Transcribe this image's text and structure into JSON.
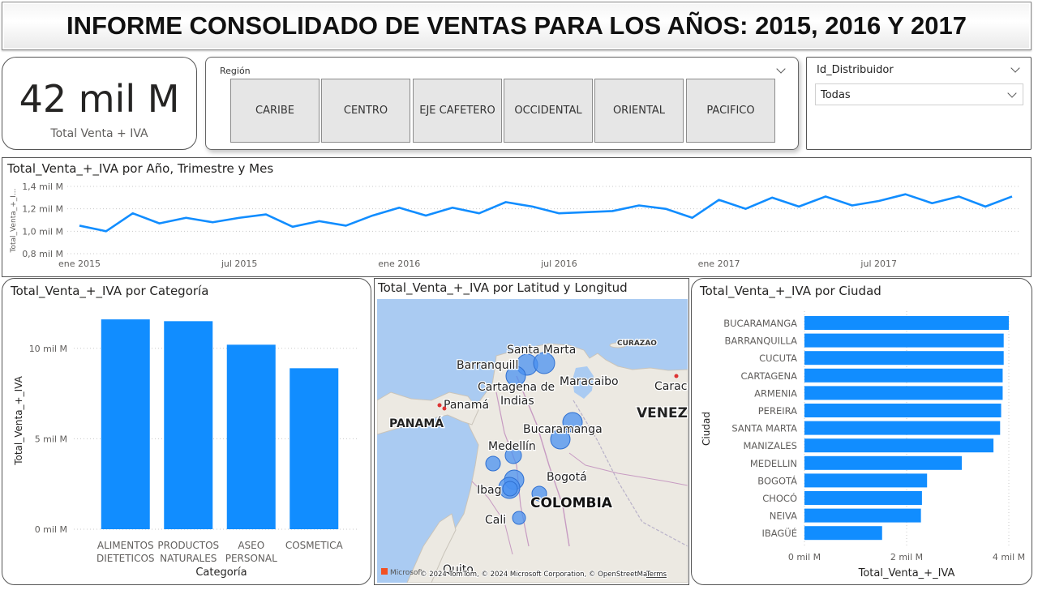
{
  "header": {
    "title": "INFORME CONSOLIDADO DE VENTAS PARA LOS AÑOS: 2015, 2016 Y 2017"
  },
  "kpi": {
    "value": "42 mil M",
    "label": "Total  Venta  +  IVA"
  },
  "region_slicer": {
    "title": "Región",
    "options": [
      "CARIBE",
      "CENTRO",
      "EJE CAFETERO",
      "OCCIDENTAL",
      "ORIENTAL",
      "PACIFICO"
    ]
  },
  "distributor_slicer": {
    "title": "Id_Distribuidor",
    "selected": "Todas"
  },
  "colors": {
    "accent": "#118DFF",
    "map_bubble": "#4A90F0",
    "grid": "#c8c8c8"
  },
  "chart_data": [
    {
      "type": "line",
      "title": "Total_Venta_+_IVA por Año, Trimestre y Mes",
      "ylabel": "Total_Venta_+_I...",
      "xlabel": "",
      "x_ticks": [
        "ene 2015",
        "jul 2015",
        "ene 2016",
        "jul 2016",
        "ene 2017",
        "jul 2017"
      ],
      "y_ticks": [
        "0,8 mil M",
        "1,0 mil M",
        "1,2 mil M",
        "1,4 mil M"
      ],
      "ylim": [
        0.8,
        1.4
      ],
      "y_unit": "mil M",
      "grid": true,
      "x": [
        "2015-01",
        "2015-02",
        "2015-03",
        "2015-04",
        "2015-05",
        "2015-06",
        "2015-07",
        "2015-08",
        "2015-09",
        "2015-10",
        "2015-11",
        "2015-12",
        "2016-01",
        "2016-02",
        "2016-03",
        "2016-04",
        "2016-05",
        "2016-06",
        "2016-07",
        "2016-08",
        "2016-09",
        "2016-10",
        "2016-11",
        "2016-12",
        "2017-01",
        "2017-02",
        "2017-03",
        "2017-04",
        "2017-05",
        "2017-06",
        "2017-07",
        "2017-08",
        "2017-09",
        "2017-10",
        "2017-11",
        "2017-12"
      ],
      "values": [
        1.05,
        1.0,
        1.16,
        1.07,
        1.12,
        1.08,
        1.12,
        1.15,
        1.04,
        1.09,
        1.05,
        1.14,
        1.21,
        1.14,
        1.21,
        1.16,
        1.26,
        1.22,
        1.16,
        1.17,
        1.18,
        1.23,
        1.2,
        1.12,
        1.28,
        1.2,
        1.3,
        1.22,
        1.31,
        1.23,
        1.27,
        1.33,
        1.25,
        1.31,
        1.22,
        1.31
      ]
    },
    {
      "type": "bar",
      "title": "Total_Venta_+_IVA por Categoría",
      "xlabel": "Categoría",
      "ylabel": "Total_Venta_+_IVA",
      "categories": [
        [
          "ALIMENTOS",
          "DIETETICOS"
        ],
        [
          "PRODUCTOS",
          "NATURALES"
        ],
        [
          "ASEO",
          "PERSONAL"
        ],
        [
          "COSMETICA"
        ]
      ],
      "values": [
        11.6,
        11.5,
        10.2,
        8.9
      ],
      "y_unit": "mil M",
      "y_ticks": [
        "0 mil M",
        "5 mil M",
        "10 mil M"
      ],
      "ylim": [
        0,
        12.5
      ],
      "grid": true
    },
    {
      "type": "bar",
      "orientation": "horizontal",
      "title": "Total_Venta_+_IVA por Ciudad",
      "xlabel": "Total_Venta_+_IVA",
      "ylabel": "Ciudad",
      "categories": [
        "BUCARAMANGA",
        "BARRANQUILLA",
        "CUCUTA",
        "CARTAGENA",
        "ARMENIA",
        "PEREIRA",
        "SANTA MARTA",
        "MANIZALES",
        "MEDELLIN",
        "BOGOTÁ",
        "CHOCÓ",
        "NEIVA",
        "IBAGÜÉ"
      ],
      "values": [
        4.0,
        3.9,
        3.9,
        3.88,
        3.88,
        3.85,
        3.83,
        3.7,
        3.08,
        2.4,
        2.3,
        2.28,
        1.52
      ],
      "y_unit": "mil M",
      "x_ticks": [
        "0 mil M",
        "2 mil M",
        "4 mil M"
      ],
      "xlim": [
        0,
        4.2
      ],
      "grid": true
    }
  ],
  "map": {
    "title": "Total_Venta_+_IVA por Latitud y Longitud",
    "labels": {
      "santa_marta": "Santa Marta",
      "barranquilla": "Barranquill",
      "cartagena_1": "Cartagena de",
      "cartagena_2": "Indias",
      "curazao": "CURAZAO",
      "maracaibo": "Maracaibo",
      "caracas": "Carac",
      "panama_city": "Panamá",
      "panama_country": "PANAMÁ",
      "venezuela": "VENEZU",
      "bucaramanga": "Bucaramanga",
      "medellin": "Medellín",
      "bogota": "Bogotá",
      "ibague": "Ibag",
      "colombia": "COLOMBIA",
      "cali": "Cali",
      "quito": "Quito"
    },
    "attribution": "© 2024 TomTom, © 2024 Microsoft Corporation, © OpenStreetMap",
    "terms": "Terms",
    "logo": "Microsoft"
  }
}
